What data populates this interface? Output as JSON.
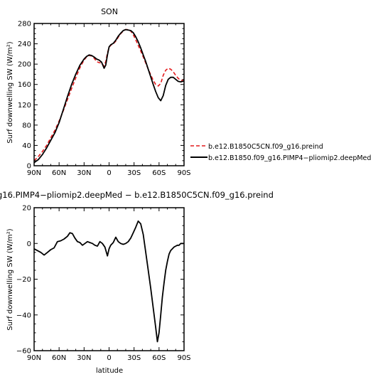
{
  "chart_data": [
    {
      "type": "line",
      "title": "SON",
      "xlabel": "",
      "ylabel": "Surf downwelling SW (W/m²)",
      "xlim": [
        90,
        -90
      ],
      "ylim": [
        0,
        280
      ],
      "x_ticks": [
        90,
        60,
        30,
        0,
        -30,
        -60,
        -90
      ],
      "x_tick_labels": [
        "90N",
        "60N",
        "30N",
        "0",
        "30S",
        "60S",
        "90S"
      ],
      "y_ticks": [
        0,
        40,
        80,
        120,
        160,
        200,
        240,
        280
      ],
      "y_tick_labels": [
        "0",
        "40",
        "80",
        "120",
        "160",
        "200",
        "240",
        "280"
      ],
      "legend_position": "right",
      "series": [
        {
          "name": "b.e12.B1850C5CN.f09_g16.preind",
          "color": "#e41a1c",
          "dash": true,
          "x": [
            90,
            85,
            80,
            75,
            70,
            65,
            60,
            55,
            50,
            45,
            40,
            35,
            30,
            27,
            24,
            21,
            18,
            15,
            12,
            9,
            6,
            4,
            2,
            0,
            -2,
            -5,
            -8,
            -11,
            -14,
            -17,
            -20,
            -23,
            -26,
            -29,
            -32,
            -35,
            -38,
            -41,
            -44,
            -47,
            -50,
            -53,
            -56,
            -59,
            -62,
            -65,
            -68,
            -71,
            -74,
            -77,
            -80,
            -83,
            -86,
            -90
          ],
          "values": [
            10,
            18,
            28,
            40,
            55,
            70,
            88,
            108,
            130,
            152,
            173,
            193,
            208,
            214,
            217,
            216,
            212,
            205,
            203,
            202,
            196,
            205,
            222,
            233,
            237,
            240,
            245,
            253,
            260,
            265,
            268,
            268,
            265,
            258,
            248,
            237,
            226,
            214,
            202,
            190,
            179,
            168,
            160,
            157,
            162,
            178,
            188,
            192,
            190,
            185,
            178,
            172,
            168,
            168
          ]
        },
        {
          "name": "b.e12.B1850.f09_g16.PIMP4−pliomip2.deepMed",
          "color": "#000000",
          "dash": false,
          "x": [
            90,
            85,
            80,
            75,
            70,
            65,
            60,
            55,
            50,
            45,
            40,
            35,
            30,
            27,
            24,
            21,
            18,
            15,
            12,
            9,
            6,
            4,
            2,
            0,
            -2,
            -5,
            -8,
            -11,
            -14,
            -17,
            -20,
            -23,
            -26,
            -29,
            -32,
            -35,
            -38,
            -41,
            -44,
            -47,
            -50,
            -53,
            -56,
            -59,
            -62,
            -65,
            -68,
            -71,
            -74,
            -77,
            -80,
            -83,
            -86,
            -90
          ],
          "values": [
            6,
            12,
            22,
            35,
            50,
            65,
            85,
            110,
            136,
            160,
            180,
            198,
            210,
            215,
            218,
            217,
            214,
            210,
            208,
            204,
            192,
            198,
            218,
            234,
            238,
            241,
            247,
            255,
            261,
            266,
            268,
            267,
            266,
            262,
            254,
            244,
            232,
            218,
            205,
            190,
            175,
            160,
            146,
            134,
            128,
            138,
            158,
            170,
            174,
            174,
            170,
            166,
            165,
            167
          ]
        }
      ]
    },
    {
      "type": "line",
      "title": "",
      "subtitle": "g16.PIMP4−pliomip2.deepMed − b.e12.B1850C5CN.f09_g16.preind",
      "xlabel": "latitude",
      "ylabel": "Surf downwelling SW (W/m²)",
      "xlim": [
        90,
        -90
      ],
      "ylim": [
        -60,
        20
      ],
      "x_ticks": [
        90,
        60,
        30,
        0,
        -30,
        -60,
        -90
      ],
      "x_tick_labels": [
        "90N",
        "60N",
        "30N",
        "0",
        "30S",
        "60S",
        "90S"
      ],
      "y_ticks": [
        -60,
        -40,
        -20,
        0,
        20
      ],
      "y_tick_labels": [
        "−60",
        "−40",
        "−20",
        "0",
        "20"
      ],
      "series": [
        {
          "color": "#000000",
          "dash": false,
          "x": [
            90,
            86,
            82,
            78,
            74,
            70,
            66,
            62,
            58,
            54,
            50,
            47,
            44,
            41,
            38,
            35,
            32,
            29,
            26,
            23,
            20,
            17,
            14,
            11,
            8,
            5,
            2,
            0,
            -2,
            -5,
            -8,
            -11,
            -14,
            -17,
            -20,
            -23,
            -26,
            -29,
            -32,
            -35,
            -38,
            -41,
            -44,
            -47,
            -50,
            -53,
            -56,
            -58,
            -60,
            -62,
            -64,
            -66,
            -68,
            -70,
            -72,
            -74,
            -76,
            -78,
            -80,
            -82,
            -84,
            -86,
            -88,
            -90
          ],
          "values": [
            -3,
            -4,
            -5,
            -6.5,
            -5,
            -3.5,
            -2.5,
            1,
            1.5,
            2.5,
            4,
            6,
            5.5,
            3,
            1,
            0.5,
            -1,
            0,
            1,
            0.5,
            0,
            -1,
            -1.5,
            1,
            0,
            -2,
            -7,
            -3,
            -1,
            0.5,
            3.5,
            1,
            0,
            -0.5,
            0,
            1,
            3,
            6,
            9,
            12.5,
            11,
            5,
            -5,
            -15,
            -25,
            -36,
            -47,
            -55,
            -50,
            -40,
            -30,
            -22,
            -15,
            -10,
            -6,
            -4,
            -3,
            -2,
            -1.5,
            -1,
            -1,
            0,
            0,
            0
          ]
        }
      ]
    }
  ]
}
